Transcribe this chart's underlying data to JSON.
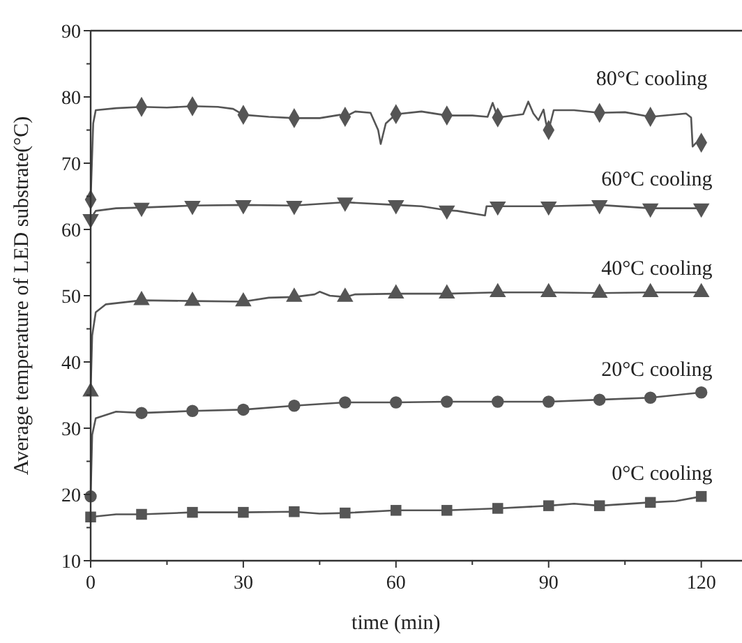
{
  "chart_data": {
    "type": "line",
    "xlabel": "time (min)",
    "ylabel": "Average temperature of LED substrate(°C)",
    "xlim": [
      0,
      128
    ],
    "ylim": [
      10,
      90
    ],
    "xticks": [
      0,
      {
        "value": 15,
        "label": null
      },
      30,
      {
        "value": 45,
        "label": null
      },
      60,
      {
        "value": 75,
        "label": null
      },
      90,
      {
        "value": 105,
        "label": null
      },
      120
    ],
    "yticks": [
      10,
      {
        "value": 15,
        "label": null
      },
      20,
      {
        "value": 25,
        "label": null
      },
      30,
      {
        "value": 35,
        "label": null
      },
      40,
      {
        "value": 45,
        "label": null
      },
      50,
      {
        "value": 55,
        "label": null
      },
      60,
      {
        "value": 65,
        "label": null
      },
      70,
      {
        "value": 75,
        "label": null
      },
      80,
      {
        "value": 85,
        "label": null
      },
      90
    ],
    "grid": false,
    "line_style": "solid",
    "annotations": [
      "80°C cooling",
      "60°C cooling",
      "40°C cooling",
      "20°C cooling",
      "0°C cooling"
    ],
    "series": [
      {
        "marker": "none",
        "color": "#555555",
        "x": [
          0,
          0.5,
          1,
          5,
          10,
          15,
          20,
          25,
          28,
          30,
          35,
          40,
          45,
          49,
          50,
          52,
          55,
          56.5,
          57,
          58,
          60,
          65,
          70,
          75,
          78,
          79,
          80,
          85,
          86,
          87,
          88,
          89,
          89.5,
          90,
          91,
          95,
          100,
          105,
          110,
          117,
          118,
          118.3,
          119
        ],
        "values": [
          64.5,
          76,
          78,
          78.3,
          78.5,
          78.4,
          78.6,
          78.5,
          78.2,
          77.3,
          77,
          76.8,
          76.8,
          77.3,
          77,
          77.8,
          77.6,
          75,
          72.9,
          76,
          77.4,
          77.8,
          77.2,
          77.2,
          77,
          79.1,
          76.9,
          77.4,
          79.3,
          77.5,
          76.5,
          78.1,
          76,
          75,
          78,
          78,
          77.6,
          77.7,
          77,
          77.5,
          76.9,
          72.5,
          73.1
        ]
      },
      {
        "type": "scatter",
        "marker": "diamond",
        "color": "#555555",
        "x": [
          0,
          10,
          20,
          30,
          40,
          50,
          60,
          70,
          80,
          90,
          100,
          110,
          120
        ],
        "values": [
          64.5,
          78.5,
          78.6,
          77.3,
          76.8,
          77,
          77.4,
          77.2,
          76.9,
          75,
          77.6,
          77,
          73.1
        ]
      },
      {
        "marker": "none",
        "color": "#555555",
        "x": [
          0,
          1,
          5,
          10,
          20,
          30,
          40,
          50,
          60,
          65,
          70,
          72,
          77.5,
          77.8,
          80,
          90,
          100,
          110,
          120
        ],
        "values": [
          61.6,
          62.8,
          63.2,
          63.3,
          63.6,
          63.7,
          63.6,
          64.1,
          63.7,
          63.5,
          62.9,
          62.8,
          62.1,
          63.5,
          63.5,
          63.5,
          63.7,
          63.2,
          63.2
        ]
      },
      {
        "type": "scatter",
        "marker": "triangle-down",
        "color": "#555555",
        "x": [
          0,
          10,
          20,
          30,
          40,
          50,
          60,
          70,
          80,
          90,
          100,
          110,
          120
        ],
        "values": [
          61.6,
          63.3,
          63.6,
          63.7,
          63.6,
          64.1,
          63.7,
          62.9,
          63.5,
          63.5,
          63.7,
          63.2,
          63.2
        ]
      },
      {
        "marker": "none",
        "color": "#555555",
        "x": [
          0,
          0.3,
          1,
          3,
          10,
          20,
          30,
          35,
          40,
          44,
          45,
          47,
          50,
          52,
          60,
          70,
          80,
          90,
          100,
          110,
          120
        ],
        "values": [
          35.5,
          44,
          47.5,
          48.7,
          49.3,
          49.2,
          49.1,
          49.7,
          49.8,
          50.2,
          50.6,
          50,
          49.8,
          50.2,
          50.3,
          50.3,
          50.5,
          50.5,
          50.4,
          50.5,
          50.5
        ]
      },
      {
        "type": "scatter",
        "marker": "triangle",
        "color": "#555555",
        "x": [
          0,
          10,
          20,
          30,
          40,
          50,
          60,
          70,
          80,
          90,
          100,
          110,
          120
        ],
        "values": [
          35.5,
          49.3,
          49.2,
          49.1,
          49.8,
          49.8,
          50.3,
          50.3,
          50.5,
          50.5,
          50.4,
          50.5,
          50.5
        ]
      },
      {
        "marker": "none",
        "color": "#555555",
        "x": [
          0,
          0.3,
          1,
          5,
          10,
          20,
          30,
          40,
          50,
          60,
          70,
          80,
          90,
          100,
          110,
          120
        ],
        "values": [
          19.7,
          29,
          31.5,
          32.5,
          32.3,
          32.6,
          32.8,
          33.4,
          33.9,
          33.9,
          34,
          34,
          34,
          34.3,
          34.6,
          35.4
        ]
      },
      {
        "type": "scatter",
        "marker": "circle",
        "color": "#555555",
        "x": [
          0,
          10,
          20,
          30,
          40,
          50,
          60,
          70,
          80,
          90,
          100,
          110,
          120
        ],
        "values": [
          19.7,
          32.3,
          32.6,
          32.8,
          33.4,
          33.9,
          33.9,
          34,
          34,
          34,
          34.3,
          34.6,
          35.4
        ]
      },
      {
        "marker": "none",
        "color": "#555555",
        "x": [
          0,
          5,
          10,
          20,
          30,
          40,
          45,
          50,
          60,
          70,
          80,
          90,
          95,
          100,
          110,
          115,
          120
        ],
        "values": [
          16.6,
          17,
          17,
          17.3,
          17.3,
          17.4,
          17.1,
          17.2,
          17.6,
          17.6,
          17.9,
          18.3,
          18.6,
          18.3,
          18.8,
          19,
          19.7
        ]
      },
      {
        "type": "scatter",
        "marker": "square",
        "color": "#555555",
        "x": [
          0,
          10,
          20,
          30,
          40,
          50,
          60,
          70,
          80,
          90,
          100,
          110,
          120
        ],
        "values": [
          16.6,
          17,
          17.3,
          17.3,
          17.4,
          17.2,
          17.6,
          17.6,
          17.9,
          18.3,
          18.3,
          18.8,
          19.7
        ]
      }
    ]
  }
}
